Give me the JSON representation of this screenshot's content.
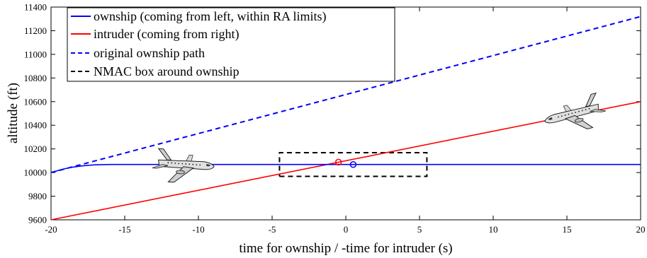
{
  "chart_data": {
    "type": "line",
    "xlabel": "time for ownship / -time for intruder (s)",
    "ylabel": "altitude (ft)",
    "xlim": [
      -20,
      20
    ],
    "ylim": [
      9600,
      11400
    ],
    "x_ticks": [
      -20,
      -15,
      -10,
      -5,
      0,
      5,
      10,
      15,
      20
    ],
    "y_ticks": [
      9600,
      9800,
      10000,
      10200,
      10400,
      10600,
      10800,
      11000,
      11200,
      11400
    ],
    "grid": false,
    "legend_position": "top-left",
    "series": [
      {
        "name": "ownship (coming from left, within RA limits)",
        "color": "#0000ff",
        "style": "solid",
        "x": [
          -20,
          -19.5,
          -19,
          -18.5,
          -18,
          -17.5,
          -17,
          -16.5,
          -16,
          -15,
          -10,
          -5,
          0,
          5,
          10,
          15,
          20
        ],
        "y": [
          10000,
          10018,
          10034,
          10046,
          10055,
          10061,
          10065,
          10067,
          10068,
          10068,
          10068,
          10068,
          10068,
          10068,
          10068,
          10068,
          10068
        ]
      },
      {
        "name": "intruder (coming from right)",
        "color": "#ff0000",
        "style": "solid",
        "x": [
          -20,
          20
        ],
        "y": [
          9600,
          10600
        ]
      },
      {
        "name": "original ownship path",
        "color": "#0000ff",
        "style": "dashed",
        "x": [
          -20,
          20
        ],
        "y": [
          10000,
          11320
        ]
      },
      {
        "name": "NMAC box around ownship",
        "color": "#000000",
        "style": "dashed",
        "x": [
          -4.5,
          5.5,
          5.5,
          -4.5,
          -4.5
        ],
        "y": [
          9968,
          9968,
          10168,
          10168,
          9968
        ]
      }
    ],
    "markers": [
      {
        "name": "intruder-position",
        "x": -0.5,
        "y": 10088,
        "color": "#ff0000"
      },
      {
        "name": "ownship-position",
        "x": 0.5,
        "y": 10068,
        "color": "#0000ff"
      }
    ],
    "aircraft_icons": [
      {
        "name": "ownship-aircraft-icon",
        "x": -11,
        "y": 10068,
        "heading": "right"
      },
      {
        "name": "intruder-aircraft-icon",
        "x": 15.5,
        "y": 10500,
        "heading": "left"
      }
    ]
  }
}
